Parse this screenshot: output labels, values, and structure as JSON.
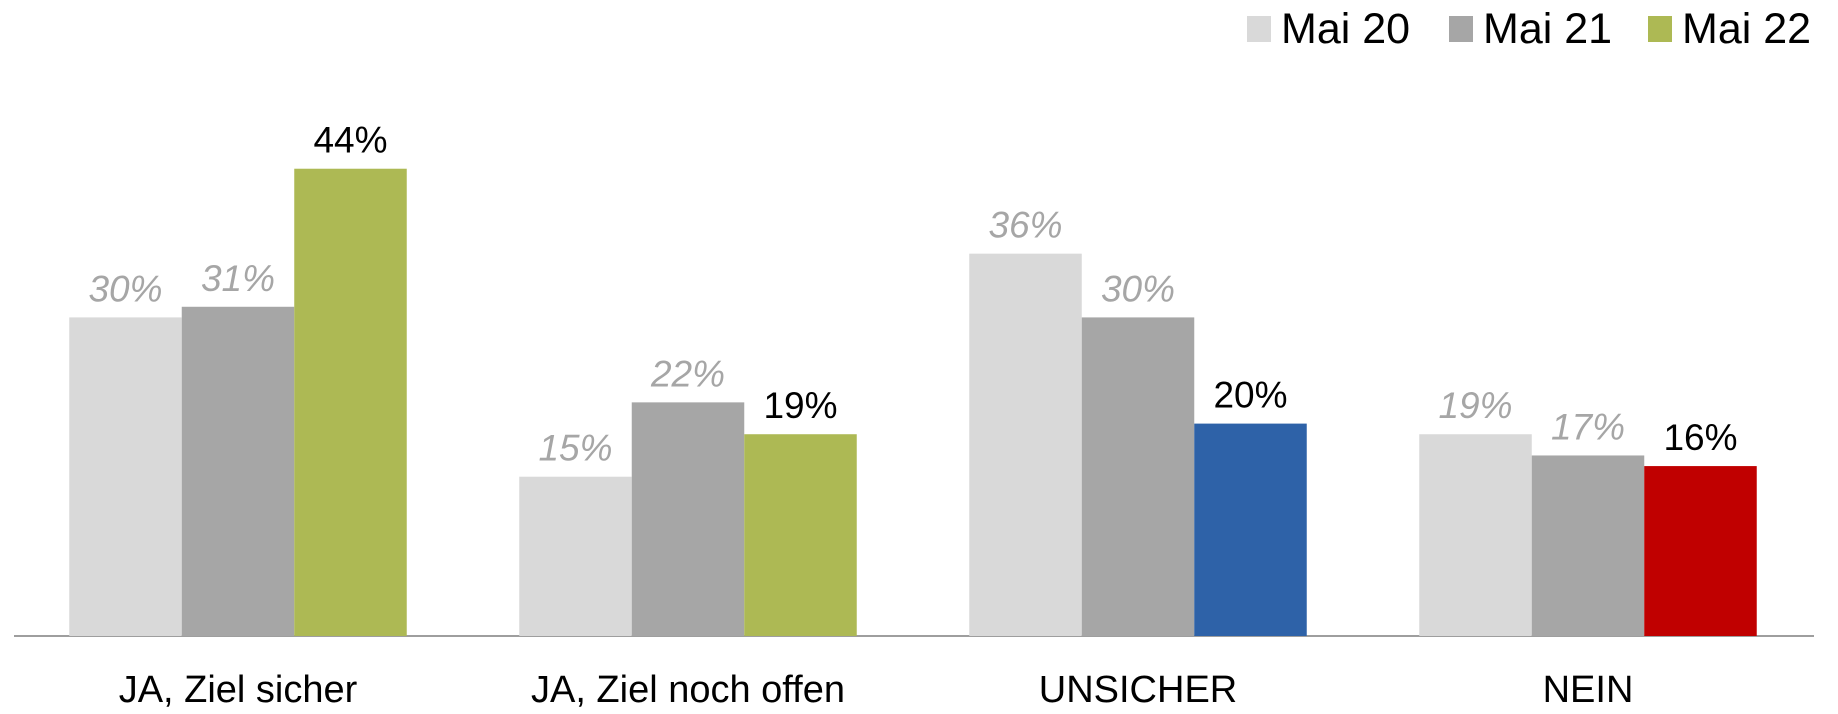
{
  "chart_data": {
    "type": "bar",
    "categories": [
      "JA, Ziel sicher",
      "JA, Ziel noch offen",
      "UNSICHER",
      "NEIN"
    ],
    "series": [
      {
        "name": "Mai 20",
        "color": "#d9d9d9",
        "values": [
          30,
          15,
          36,
          19
        ],
        "value_labels": [
          "30%",
          "15%",
          "36%",
          "19%"
        ]
      },
      {
        "name": "Mai 21",
        "color": "#a6a6a6",
        "values": [
          31,
          22,
          30,
          17
        ],
        "value_labels": [
          "31%",
          "22%",
          "30%",
          "17%"
        ]
      },
      {
        "name": "Mai 22",
        "color": "#adb954",
        "colors": [
          "#adb954",
          "#adb954",
          "#2e62a8",
          "#c00000"
        ],
        "values": [
          44,
          19,
          20,
          16
        ],
        "value_labels": [
          "44%",
          "19%",
          "20%",
          "16%"
        ]
      }
    ],
    "legend": "top-right",
    "grid": false
  }
}
